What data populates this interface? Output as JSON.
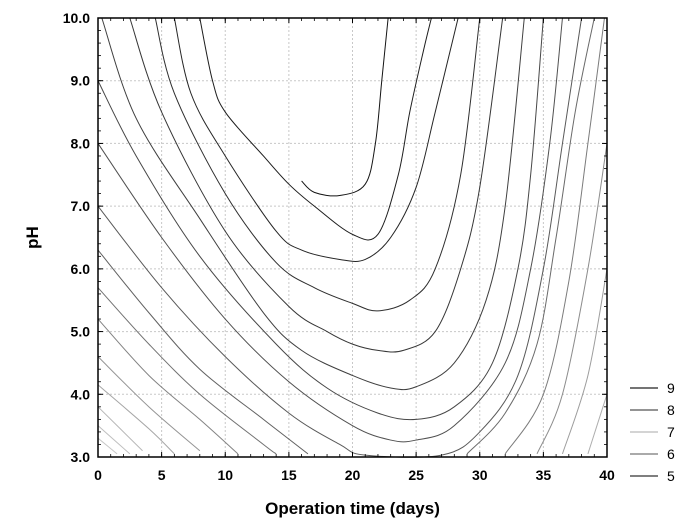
{
  "chart_data": {
    "type": "contour",
    "xlabel": "Operation time (days)",
    "ylabel": "pH",
    "xlim": [
      0,
      40
    ],
    "ylim": [
      3.0,
      10.0
    ],
    "x_ticks": [
      "0",
      "5",
      "10",
      "15",
      "20",
      "25",
      "30",
      "35",
      "40"
    ],
    "y_ticks": [
      "3.0",
      "4.0",
      "5.0",
      "6.0",
      "7.0",
      "8.0",
      "9.0",
      "10.0"
    ],
    "grid": true,
    "legend_position": "bottom-right",
    "legend": [
      {
        "label": "9",
        "color": "#222222"
      },
      {
        "label": "8",
        "color": "#555555"
      },
      {
        "label": "7",
        "color": "#bbbbbb"
      },
      {
        "label": "6",
        "color": "#777777"
      },
      {
        "label": "5",
        "color": "#333333"
      }
    ],
    "contours": [
      {
        "points": [
          [
            16,
            7.4
          ],
          [
            17,
            7.22
          ],
          [
            19,
            7.17
          ],
          [
            21,
            7.35
          ],
          [
            21.8,
            8.0
          ],
          [
            22.3,
            9.0
          ],
          [
            22.8,
            10.0
          ]
        ]
      },
      {
        "points": [
          [
            8,
            10.0
          ],
          [
            9,
            9.0
          ],
          [
            10,
            8.5
          ],
          [
            13,
            7.8
          ],
          [
            15,
            7.35
          ],
          [
            17,
            7.0
          ],
          [
            20,
            6.55
          ],
          [
            22,
            6.55
          ],
          [
            23.6,
            7.5
          ],
          [
            24.5,
            8.5
          ],
          [
            25.6,
            9.5
          ],
          [
            26.2,
            10.0
          ]
        ]
      },
      {
        "points": [
          [
            6,
            10.0
          ],
          [
            7.3,
            8.8
          ],
          [
            10,
            7.8
          ],
          [
            14,
            6.6
          ],
          [
            16,
            6.3
          ],
          [
            19,
            6.15
          ],
          [
            21,
            6.15
          ],
          [
            23,
            6.5
          ],
          [
            25,
            7.3
          ],
          [
            26.5,
            8.5
          ],
          [
            28.3,
            10.0
          ]
        ]
      },
      {
        "points": [
          [
            4.5,
            10.0
          ],
          [
            6,
            8.8
          ],
          [
            10,
            7.2
          ],
          [
            14,
            6.1
          ],
          [
            17,
            5.7
          ],
          [
            20,
            5.45
          ],
          [
            22,
            5.33
          ],
          [
            24.5,
            5.5
          ],
          [
            26.5,
            6.0
          ],
          [
            28.5,
            7.5
          ],
          [
            30,
            10.0
          ]
        ]
      },
      {
        "points": [
          [
            2.5,
            10.0
          ],
          [
            5,
            8.5
          ],
          [
            10,
            6.6
          ],
          [
            15,
            5.4
          ],
          [
            18,
            5.0
          ],
          [
            20,
            4.8
          ],
          [
            22,
            4.7
          ],
          [
            24,
            4.7
          ],
          [
            26.5,
            5.0
          ],
          [
            28.5,
            6.0
          ],
          [
            30,
            7.3
          ],
          [
            31.8,
            10.0
          ]
        ]
      },
      {
        "points": [
          [
            0.3,
            10.0
          ],
          [
            3,
            8.4
          ],
          [
            8,
            6.8
          ],
          [
            13,
            5.3
          ],
          [
            16,
            4.7
          ],
          [
            20,
            4.3
          ],
          [
            23,
            4.1
          ],
          [
            25,
            4.12
          ],
          [
            28,
            4.5
          ],
          [
            30.5,
            5.5
          ],
          [
            32,
            7.0
          ],
          [
            33.5,
            10.0
          ]
        ]
      },
      {
        "points": [
          [
            0,
            9.0
          ],
          [
            3,
            7.8
          ],
          [
            8,
            6.2
          ],
          [
            14,
            4.8
          ],
          [
            18,
            4.1
          ],
          [
            22,
            3.7
          ],
          [
            25,
            3.6
          ],
          [
            28,
            3.8
          ],
          [
            31,
            4.5
          ],
          [
            33,
            6.0
          ],
          [
            34,
            7.5
          ],
          [
            35,
            10.0
          ]
        ]
      },
      {
        "points": [
          [
            0,
            8.0
          ],
          [
            5,
            6.5
          ],
          [
            10,
            5.2
          ],
          [
            15,
            4.2
          ],
          [
            20,
            3.5
          ],
          [
            23,
            3.27
          ],
          [
            25,
            3.27
          ],
          [
            28,
            3.5
          ],
          [
            32,
            4.5
          ],
          [
            34,
            6.0
          ],
          [
            35.5,
            8.0
          ],
          [
            36.5,
            10.0
          ]
        ]
      },
      {
        "points": [
          [
            0,
            7.0
          ],
          [
            5,
            5.7
          ],
          [
            10,
            4.6
          ],
          [
            15,
            3.7
          ],
          [
            19,
            3.2
          ],
          [
            21,
            3.03
          ],
          [
            27,
            3.03
          ],
          [
            30,
            3.4
          ],
          [
            33,
            4.3
          ],
          [
            35,
            6.0
          ],
          [
            36.5,
            8.0
          ],
          [
            38,
            10.0
          ]
        ]
      },
      {
        "points": [
          [
            0,
            6.3
          ],
          [
            4,
            5.3
          ],
          [
            8,
            4.4
          ],
          [
            13,
            3.6
          ],
          [
            16.5,
            3.05
          ]
        ]
      },
      {
        "points": [
          [
            29,
            3.05
          ],
          [
            32,
            3.7
          ],
          [
            34.5,
            4.8
          ],
          [
            36,
            6.5
          ],
          [
            37.5,
            8.5
          ],
          [
            39,
            10.0
          ]
        ]
      },
      {
        "points": [
          [
            0,
            5.7
          ],
          [
            4,
            4.8
          ],
          [
            8,
            4.0
          ],
          [
            13,
            3.2
          ],
          [
            14,
            3.05
          ]
        ]
      },
      {
        "points": [
          [
            32,
            3.05
          ],
          [
            35,
            4.0
          ],
          [
            37,
            5.8
          ],
          [
            38.5,
            8.0
          ],
          [
            39.8,
            10.0
          ]
        ]
      },
      {
        "points": [
          [
            0,
            5.2
          ],
          [
            4,
            4.3
          ],
          [
            8,
            3.6
          ],
          [
            11,
            3.05
          ]
        ]
      },
      {
        "points": [
          [
            34.5,
            3.05
          ],
          [
            36.5,
            4.0
          ],
          [
            38.5,
            6.0
          ],
          [
            40,
            8.0
          ]
        ]
      },
      {
        "points": [
          [
            0,
            4.6
          ],
          [
            4,
            3.8
          ],
          [
            8,
            3.1
          ]
        ]
      },
      {
        "points": [
          [
            36.5,
            3.05
          ],
          [
            38.5,
            4.3
          ],
          [
            40,
            6.0
          ]
        ]
      },
      {
        "points": [
          [
            0,
            4.15
          ],
          [
            4,
            3.45
          ],
          [
            6,
            3.05
          ]
        ]
      },
      {
        "points": [
          [
            38.5,
            3.05
          ],
          [
            40,
            4.0
          ]
        ]
      },
      {
        "points": [
          [
            0,
            3.8
          ],
          [
            3.5,
            3.1
          ]
        ]
      },
      {
        "points": [
          [
            0,
            3.5
          ],
          [
            2.5,
            3.05
          ]
        ]
      },
      {
        "points": [
          [
            0,
            3.3
          ],
          [
            1.5,
            3.05
          ]
        ]
      }
    ]
  }
}
